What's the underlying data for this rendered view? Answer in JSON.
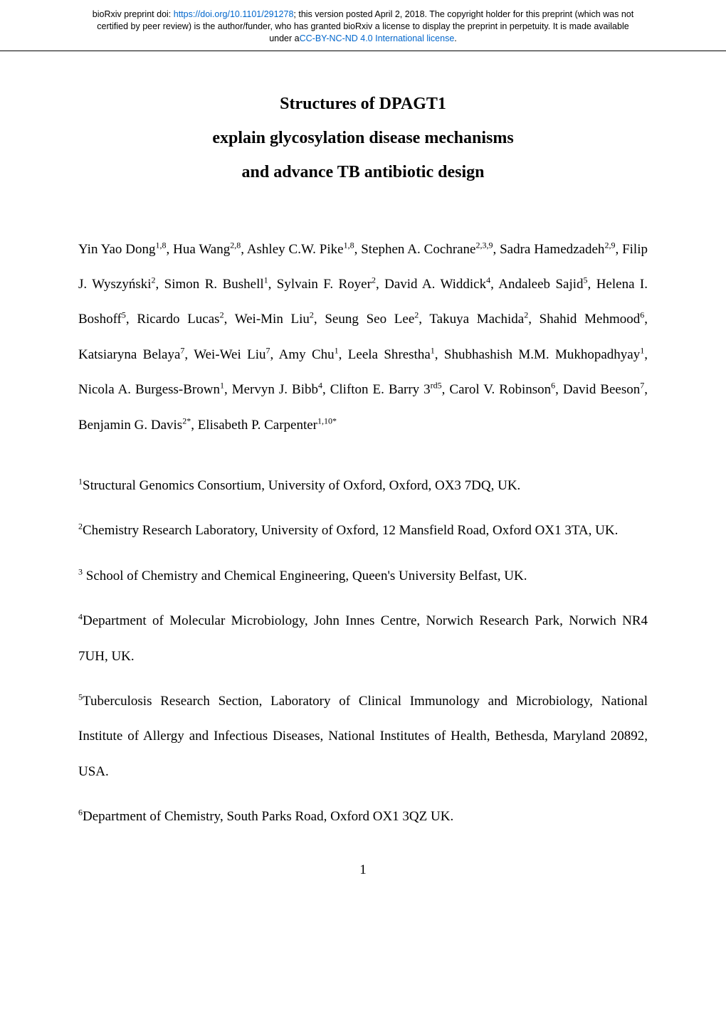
{
  "header": {
    "line1_prefix": "bioRxiv preprint doi: ",
    "doi_url": "https://doi.org/10.1101/291278",
    "line1_suffix": "; this version posted April 2, 2018. The copyright holder for this preprint (which was not",
    "line2": "certified by peer review) is the author/funder, who has granted bioRxiv a license to display the preprint in perpetuity. It is made available",
    "line3_prefix": "under a",
    "license_text": "CC-BY-NC-ND 4.0 International license",
    "line3_suffix": "."
  },
  "title": {
    "line1": "Structures of DPAGT1",
    "line2": "explain glycosylation disease mechanisms",
    "line3": "and advance TB antibiotic design"
  },
  "authors_html": "Yin Yao Dong<sup>1,8</sup>, Hua Wang<sup>2,8</sup>, Ashley C.W. Pike<sup>1,8</sup>, Stephen A. Cochrane<sup>2,3,9</sup>, Sadra Hamedzadeh<sup>2,9</sup>, Filip J. Wyszyński<sup>2</sup>, Simon R. Bushell<sup>1</sup>, Sylvain F. Royer<sup>2</sup>, David A. Widdick<sup>4</sup>, Andaleeb Sajid<sup>5</sup>, Helena I. Boshoff<sup>5</sup>, Ricardo Lucas<sup>2</sup>, Wei-Min Liu<sup>2</sup>, Seung Seo Lee<sup>2</sup>, Takuya Machida<sup>2</sup>, Shahid Mehmood<sup>6</sup>, Katsiaryna Belaya<sup>7</sup>, Wei-Wei Liu<sup>7</sup>, Amy Chu<sup>1</sup>, Leela Shrestha<sup>1</sup>, Shubhashish M.M. Mukhopadhyay<sup>1</sup>, Nicola A. Burgess-Brown<sup>1</sup>, Mervyn J. Bibb<sup>4</sup>, Clifton E. Barry 3<sup>rd5</sup>, Carol V. Robinson<sup>6</sup>, David Beeson<sup>7</sup>, Benjamin G. Davis<sup>2*</sup>, Elisabeth P. Carpenter<sup>1,10*</sup>",
  "affiliations": [
    {
      "sup": "1",
      "text": "Structural Genomics Consortium, University of Oxford, Oxford, OX3 7DQ, UK."
    },
    {
      "sup": "2",
      "text": "Chemistry Research Laboratory, University of Oxford, 12 Mansfield Road, Oxford OX1 3TA, UK."
    },
    {
      "sup": "3",
      "text": " School of Chemistry and Chemical Engineering, Queen's University Belfast, UK."
    },
    {
      "sup": "4",
      "text": "Department of Molecular Microbiology, John Innes Centre, Norwich Research Park, Norwich NR4 7UH, UK."
    },
    {
      "sup": "5",
      "text": "Tuberculosis Research Section, Laboratory of Clinical Immunology and Microbiology, National Institute of Allergy and Infectious Diseases, National Institutes of Health, Bethesda, Maryland 20892, USA."
    },
    {
      "sup": "6",
      "text": "Department of Chemistry, South Parks Road, Oxford OX1 3QZ UK."
    }
  ],
  "page_number": "1"
}
